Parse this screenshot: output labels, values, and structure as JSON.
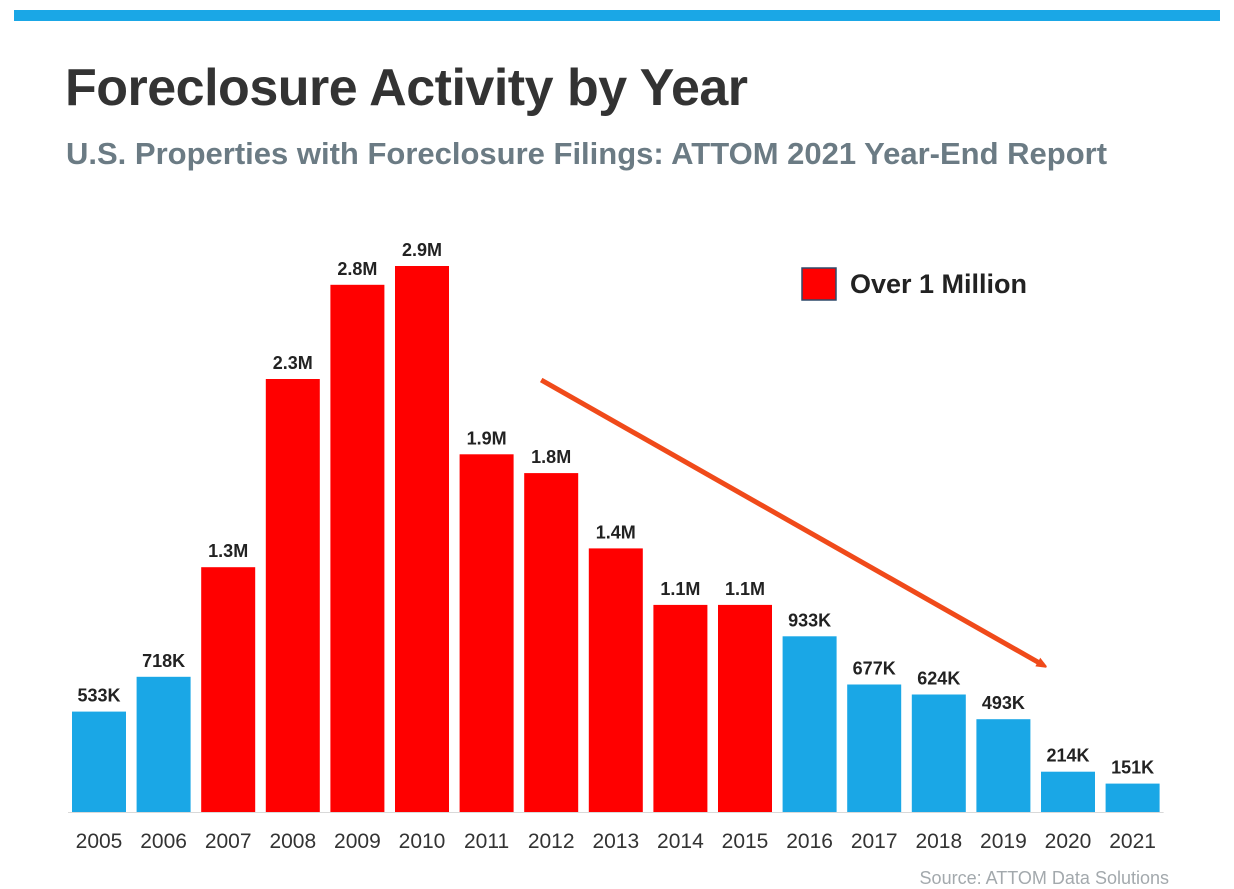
{
  "title": "Foreclosure Activity by Year",
  "subtitle": "U.S. Properties with Foreclosure Filings: ATTOM 2021 Year-End Report",
  "source": "Source: ATTOM Data Solutions",
  "legend": {
    "label": "Over 1 Million",
    "color": "#ff0000",
    "position": "top-right"
  },
  "colors": {
    "accent_bar": "#1aa7e6",
    "over_million": "#ff0000",
    "under_million": "#1aa7e6",
    "trend_arrow": "#f04a1a"
  },
  "chart_data": {
    "type": "bar",
    "title": "Foreclosure Activity by Year",
    "subtitle": "U.S. Properties with Foreclosure Filings: ATTOM 2021 Year-End Report",
    "xlabel": "",
    "ylabel": "",
    "categories": [
      "2005",
      "2006",
      "2007",
      "2008",
      "2009",
      "2010",
      "2011",
      "2012",
      "2013",
      "2014",
      "2015",
      "2016",
      "2017",
      "2018",
      "2019",
      "2020",
      "2021"
    ],
    "values": [
      533000,
      718000,
      1300000,
      2300000,
      2800000,
      2900000,
      1900000,
      1800000,
      1400000,
      1100000,
      1100000,
      933000,
      677000,
      624000,
      493000,
      214000,
      151000
    ],
    "data_labels": [
      "533K",
      "718K",
      "1.3M",
      "2.3M",
      "2.8M",
      "2.9M",
      "1.9M",
      "1.8M",
      "1.4M",
      "1.1M",
      "1.1M",
      "933K",
      "677K",
      "624K",
      "493K",
      "214K",
      "151K"
    ],
    "highlight_rule": "Over 1 Million",
    "ylim": [
      0,
      2900000
    ],
    "grid": false,
    "legend_position": "top-right",
    "annotations": [
      {
        "type": "trend-arrow",
        "from_category": "2012",
        "to_category": "2020",
        "direction": "down"
      }
    ]
  }
}
